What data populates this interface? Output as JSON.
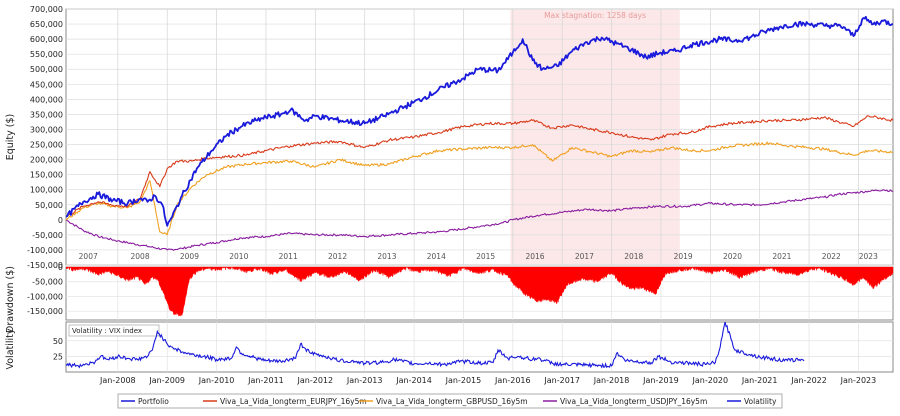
{
  "chart_data": [
    {
      "type": "line",
      "panel": "equity",
      "ylabel": "Equity ($)",
      "ylim": [
        -150000,
        700000
      ],
      "y_ticks": [
        "700,000",
        "650,000",
        "600,000",
        "550,000",
        "500,000",
        "450,000",
        "400,000",
        "350,000",
        "300,000",
        "250,000",
        "200,000",
        "150,000",
        "100,000",
        "50,000",
        "0",
        "-50,000",
        "-100,000",
        "-150,000"
      ],
      "y_tick_values": [
        700000,
        650000,
        600000,
        550000,
        500000,
        450000,
        400000,
        350000,
        300000,
        250000,
        200000,
        150000,
        100000,
        50000,
        0,
        -50000,
        -100000,
        -150000
      ],
      "year_labels": [
        "2007",
        "2008",
        "2009",
        "2010",
        "2011",
        "2012",
        "2013",
        "2014",
        "2015",
        "2016",
        "2017",
        "2018",
        "2019",
        "2020",
        "2021",
        "2022",
        "2023"
      ],
      "year_label_x": [
        2007.4,
        2008.45,
        2009.45,
        2010.45,
        2011.45,
        2012.45,
        2013.45,
        2014.45,
        2015.45,
        2016.45,
        2017.45,
        2018.45,
        2019.45,
        2020.45,
        2021.45,
        2022.45,
        2023.2
      ],
      "grid": true,
      "annotation": {
        "text": "Max stagnation: 1258 days",
        "x_start": 2015.95,
        "x_end": 2019.38
      },
      "series": [
        {
          "name": "Portfolio",
          "color": "#1a1adb",
          "x": [
            2006.95,
            2007.3,
            2007.6,
            2007.9,
            2008.2,
            2008.45,
            2008.6,
            2008.75,
            2008.9,
            2009.0,
            2009.1,
            2009.3,
            2009.6,
            2009.9,
            2010.2,
            2010.5,
            2010.8,
            2011.0,
            2011.3,
            2011.5,
            2011.8,
            2012.0,
            2012.5,
            2013.0,
            2013.4,
            2013.8,
            2014.2,
            2014.6,
            2015.0,
            2015.3,
            2015.7,
            2016.0,
            2016.2,
            2016.4,
            2016.6,
            2016.9,
            2017.2,
            2017.5,
            2017.8,
            2018.1,
            2018.4,
            2018.7,
            2019.0,
            2019.3,
            2019.6,
            2019.9,
            2020.2,
            2020.5,
            2020.8,
            2021.1,
            2021.4,
            2021.7,
            2022.0,
            2022.3,
            2022.5,
            2022.7,
            2022.9,
            2023.1,
            2023.3,
            2023.5,
            2023.7
          ],
          "y": [
            10000,
            60000,
            85000,
            65000,
            55000,
            70000,
            60000,
            80000,
            50000,
            -20000,
            10000,
            80000,
            170000,
            230000,
            280000,
            310000,
            330000,
            340000,
            350000,
            365000,
            330000,
            345000,
            330000,
            320000,
            345000,
            375000,
            405000,
            440000,
            470000,
            500000,
            495000,
            555000,
            600000,
            530000,
            500000,
            510000,
            560000,
            590000,
            605000,
            585000,
            565000,
            540000,
            555000,
            560000,
            580000,
            590000,
            600000,
            595000,
            605000,
            625000,
            640000,
            650000,
            650000,
            645000,
            645000,
            640000,
            610000,
            670000,
            650000,
            660000,
            650000
          ]
        },
        {
          "name": "Viva_La_Vida_longterm_EURJPY_16y5m",
          "color": "#d83a1a",
          "x": [
            2006.95,
            2007.3,
            2007.6,
            2007.9,
            2008.2,
            2008.45,
            2008.65,
            2008.85,
            2009.0,
            2009.2,
            2009.5,
            2009.8,
            2010.2,
            2010.6,
            2011.0,
            2011.5,
            2012.0,
            2012.5,
            2013.0,
            2013.5,
            2014.0,
            2014.5,
            2015.0,
            2015.5,
            2016.0,
            2016.4,
            2016.8,
            2017.2,
            2017.6,
            2018.0,
            2018.4,
            2018.8,
            2019.2,
            2019.6,
            2020.0,
            2020.4,
            2020.8,
            2021.2,
            2021.6,
            2022.0,
            2022.3,
            2022.6,
            2022.9,
            2023.2,
            2023.7
          ],
          "y": [
            10000,
            45000,
            60000,
            48000,
            45000,
            70000,
            160000,
            110000,
            170000,
            195000,
            195000,
            205000,
            210000,
            215000,
            230000,
            245000,
            255000,
            260000,
            240000,
            265000,
            275000,
            290000,
            310000,
            320000,
            320000,
            330000,
            305000,
            315000,
            300000,
            290000,
            275000,
            265000,
            285000,
            290000,
            310000,
            320000,
            325000,
            330000,
            330000,
            335000,
            340000,
            325000,
            310000,
            345000,
            330000
          ]
        },
        {
          "name": "Viva_La_Vida_longterm_GBPUSD_16y5m",
          "color": "#f0a020",
          "x": [
            2006.95,
            2007.3,
            2007.6,
            2007.9,
            2008.2,
            2008.45,
            2008.65,
            2008.85,
            2009.0,
            2009.2,
            2009.5,
            2009.8,
            2010.2,
            2010.6,
            2011.0,
            2011.5,
            2012.0,
            2012.5,
            2013.0,
            2013.5,
            2014.0,
            2014.5,
            2015.0,
            2015.5,
            2016.0,
            2016.4,
            2016.8,
            2017.2,
            2017.6,
            2018.0,
            2018.4,
            2018.8,
            2019.2,
            2019.6,
            2020.0,
            2020.4,
            2020.8,
            2021.2,
            2021.6,
            2022.0,
            2022.3,
            2022.6,
            2022.9,
            2023.2,
            2023.7
          ],
          "y": [
            0,
            40000,
            55000,
            45000,
            40000,
            60000,
            130000,
            -40000,
            -50000,
            50000,
            110000,
            150000,
            175000,
            185000,
            190000,
            195000,
            175000,
            200000,
            180000,
            185000,
            210000,
            230000,
            235000,
            240000,
            240000,
            250000,
            195000,
            240000,
            225000,
            210000,
            230000,
            225000,
            240000,
            230000,
            230000,
            245000,
            250000,
            255000,
            245000,
            240000,
            235000,
            225000,
            215000,
            230000,
            225000
          ]
        },
        {
          "name": "Viva_La_Vida_longterm_USDJPY_16y5m",
          "color": "#8a1ca0",
          "x": [
            2006.95,
            2007.3,
            2007.6,
            2008.0,
            2008.5,
            2009.0,
            2009.3,
            2009.6,
            2010.0,
            2010.5,
            2011.0,
            2011.5,
            2012.0,
            2012.5,
            2013.0,
            2013.5,
            2014.0,
            2014.5,
            2015.0,
            2015.4,
            2015.8,
            2016.0,
            2016.5,
            2017.0,
            2017.5,
            2018.0,
            2018.5,
            2019.0,
            2019.5,
            2020.0,
            2020.5,
            2021.0,
            2021.5,
            2022.0,
            2022.3,
            2022.6,
            2022.9,
            2023.2,
            2023.5,
            2023.7
          ],
          "y": [
            0,
            -35000,
            -55000,
            -70000,
            -85000,
            -100000,
            -95000,
            -85000,
            -75000,
            -60000,
            -55000,
            -45000,
            -50000,
            -50000,
            -55000,
            -50000,
            -45000,
            -40000,
            -30000,
            -20000,
            -10000,
            0,
            15000,
            25000,
            35000,
            30000,
            40000,
            45000,
            45000,
            55000,
            50000,
            50000,
            60000,
            70000,
            75000,
            85000,
            90000,
            95000,
            100000,
            95000
          ]
        }
      ]
    },
    {
      "type": "area",
      "panel": "drawdown",
      "ylabel": "Drawdown ($)",
      "ylim": [
        -180000,
        0
      ],
      "y_ticks": [
        "-150,000",
        "-100,000",
        "-50,000",
        "0"
      ],
      "y_tick_values": [
        -150000,
        -100000,
        -50000,
        0
      ],
      "color": "#ff0000",
      "series": [
        {
          "name": "Drawdown",
          "x": [
            2006.95,
            2007.1,
            2007.3,
            2007.6,
            2007.8,
            2008.0,
            2008.2,
            2008.4,
            2008.55,
            2008.7,
            2008.8,
            2008.9,
            2009.0,
            2009.05,
            2009.15,
            2009.3,
            2009.45,
            2009.6,
            2009.8,
            2010.0,
            2010.3,
            2010.6,
            2010.9,
            2011.1,
            2011.4,
            2011.7,
            2012.0,
            2012.3,
            2012.6,
            2012.9,
            2013.2,
            2013.5,
            2013.8,
            2014.1,
            2014.4,
            2014.7,
            2015.0,
            2015.3,
            2015.6,
            2015.9,
            2016.0,
            2016.1,
            2016.3,
            2016.5,
            2016.7,
            2016.9,
            2017.1,
            2017.4,
            2017.7,
            2018.0,
            2018.2,
            2018.4,
            2018.6,
            2018.9,
            2019.1,
            2019.4,
            2019.7,
            2020.0,
            2020.3,
            2020.6,
            2020.9,
            2021.2,
            2021.5,
            2021.8,
            2022.0,
            2022.2,
            2022.5,
            2022.7,
            2022.9,
            2023.1,
            2023.3,
            2023.5,
            2023.7
          ],
          "y": [
            0,
            -10000,
            -5000,
            -25000,
            -15000,
            -30000,
            -45000,
            -35000,
            -60000,
            -35000,
            -40000,
            -80000,
            -120000,
            -145000,
            -160000,
            -165000,
            -40000,
            -15000,
            -5000,
            -8000,
            -2000,
            -15000,
            -5000,
            -25000,
            -10000,
            -45000,
            -20000,
            -35000,
            -15000,
            -45000,
            -10000,
            -35000,
            -5000,
            -15000,
            -10000,
            -30000,
            -5000,
            -20000,
            -10000,
            -30000,
            -55000,
            -70000,
            -100000,
            -115000,
            -110000,
            -120000,
            -60000,
            -40000,
            -50000,
            -20000,
            -55000,
            -75000,
            -70000,
            -90000,
            -20000,
            -10000,
            -5000,
            -20000,
            -10000,
            -35000,
            -15000,
            -5000,
            -20000,
            -25000,
            -10000,
            -5000,
            -25000,
            -40000,
            -60000,
            -35000,
            -70000,
            -45000,
            -20000
          ]
        }
      ]
    },
    {
      "type": "line",
      "panel": "volatility",
      "ylabel": "Volatility",
      "ylim": [
        0,
        80
      ],
      "y_ticks": [
        "50",
        "25"
      ],
      "y_tick_values": [
        50,
        25
      ],
      "legend_box_text": "Volatility : VIX index",
      "x_tick_labels": [
        "Jan-2008",
        "Jan-2009",
        "Jan-2010",
        "Jan-2011",
        "Jan-2012",
        "Jan-2013",
        "Jan-2014",
        "Jan-2015",
        "Jan-2016",
        "Jan-2017",
        "Jan-2018",
        "Jan-2019",
        "Jan-2020",
        "Jan-2021",
        "Jan-2022",
        "Jan-2023"
      ],
      "x_tick_values": [
        2008.0,
        2009.0,
        2010.0,
        2011.0,
        2012.0,
        2013.0,
        2014.0,
        2015.0,
        2016.0,
        2017.0,
        2018.0,
        2019.0,
        2020.0,
        2021.0,
        2022.0,
        2023.0
      ],
      "series": [
        {
          "name": "Volatility",
          "color": "#1a1adb",
          "x": [
            2006.95,
            2007.2,
            2007.5,
            2007.65,
            2007.8,
            2008.0,
            2008.2,
            2008.4,
            2008.6,
            2008.7,
            2008.8,
            2008.9,
            2009.0,
            2009.1,
            2009.3,
            2009.5,
            2009.8,
            2010.0,
            2010.3,
            2010.4,
            2010.5,
            2010.8,
            2011.0,
            2011.3,
            2011.6,
            2011.7,
            2011.9,
            2012.2,
            2012.5,
            2012.8,
            2013.0,
            2013.4,
            2013.6,
            2014.0,
            2014.3,
            2014.6,
            2014.8,
            2015.0,
            2015.4,
            2015.6,
            2015.7,
            2015.9,
            2016.1,
            2016.4,
            2016.5,
            2016.8,
            2017.0,
            2017.5,
            2018.0,
            2018.1,
            2018.3,
            2018.8,
            2018.95,
            2019.2,
            2019.6,
            2019.9,
            2020.1,
            2020.2,
            2020.3,
            2020.5,
            2020.8,
            2021.0,
            2021.2,
            2021.5,
            2021.8,
            2021.9
          ],
          "y": [
            12,
            10,
            15,
            25,
            20,
            25,
            22,
            20,
            25,
            35,
            65,
            55,
            45,
            40,
            32,
            28,
            24,
            20,
            22,
            40,
            30,
            22,
            18,
            17,
            22,
            45,
            30,
            25,
            18,
            17,
            14,
            16,
            20,
            13,
            14,
            12,
            15,
            17,
            14,
            15,
            35,
            22,
            25,
            20,
            22,
            14,
            12,
            11,
            10,
            30,
            18,
            15,
            25,
            16,
            14,
            12,
            15,
            40,
            80,
            35,
            28,
            24,
            22,
            18,
            20,
            18
          ]
        }
      ]
    }
  ],
  "legend": {
    "items": [
      {
        "label": "Portfolio",
        "color": "#1a1adb"
      },
      {
        "label": "Viva_La_Vida_longterm_EURJPY_16y5m",
        "color": "#d83a1a"
      },
      {
        "label": "Viva_La_Vida_longterm_GBPUSD_16y5m",
        "color": "#f0a020"
      },
      {
        "label": "Viva_La_Vida_longterm_USDJPY_16y5m",
        "color": "#8a1ca0"
      },
      {
        "label": "Volatility",
        "color": "#1a1adb"
      }
    ]
  }
}
